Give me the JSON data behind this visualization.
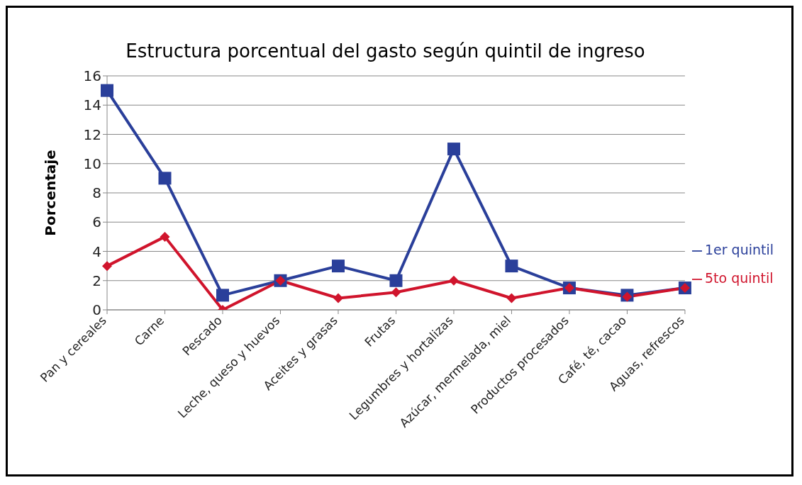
{
  "chart_data": {
    "type": "line",
    "title": "Estructura porcentual del gasto según quintil de ingreso",
    "ylabel": "Porcentaje",
    "categories": [
      "Pan y cereales",
      "Carne",
      "Pescado",
      "Leche, queso y huevos",
      "Aceites y grasas",
      "Frutas",
      "Legumbres y hortalizas",
      "Azúcar, mermelada, miel",
      "Productos procesados",
      "Café, té, cacao",
      "Aguas, refrescos"
    ],
    "series": [
      {
        "name": "1er quintil",
        "color": "#2a3f9a",
        "marker": "square",
        "values": [
          15,
          9,
          1,
          2,
          3,
          2,
          11,
          3,
          1.5,
          1,
          1.5
        ]
      },
      {
        "name": "5to quintil",
        "color": "#d0142c",
        "marker": "diamond",
        "values": [
          3,
          5,
          0,
          2,
          0.8,
          1.2,
          2,
          0.8,
          1.5,
          0.9,
          1.5
        ]
      }
    ],
    "ylim": [
      0,
      16
    ],
    "yticks": [
      0,
      2,
      4,
      6,
      8,
      10,
      12,
      14,
      16
    ],
    "grid": "y",
    "legend": "right"
  }
}
